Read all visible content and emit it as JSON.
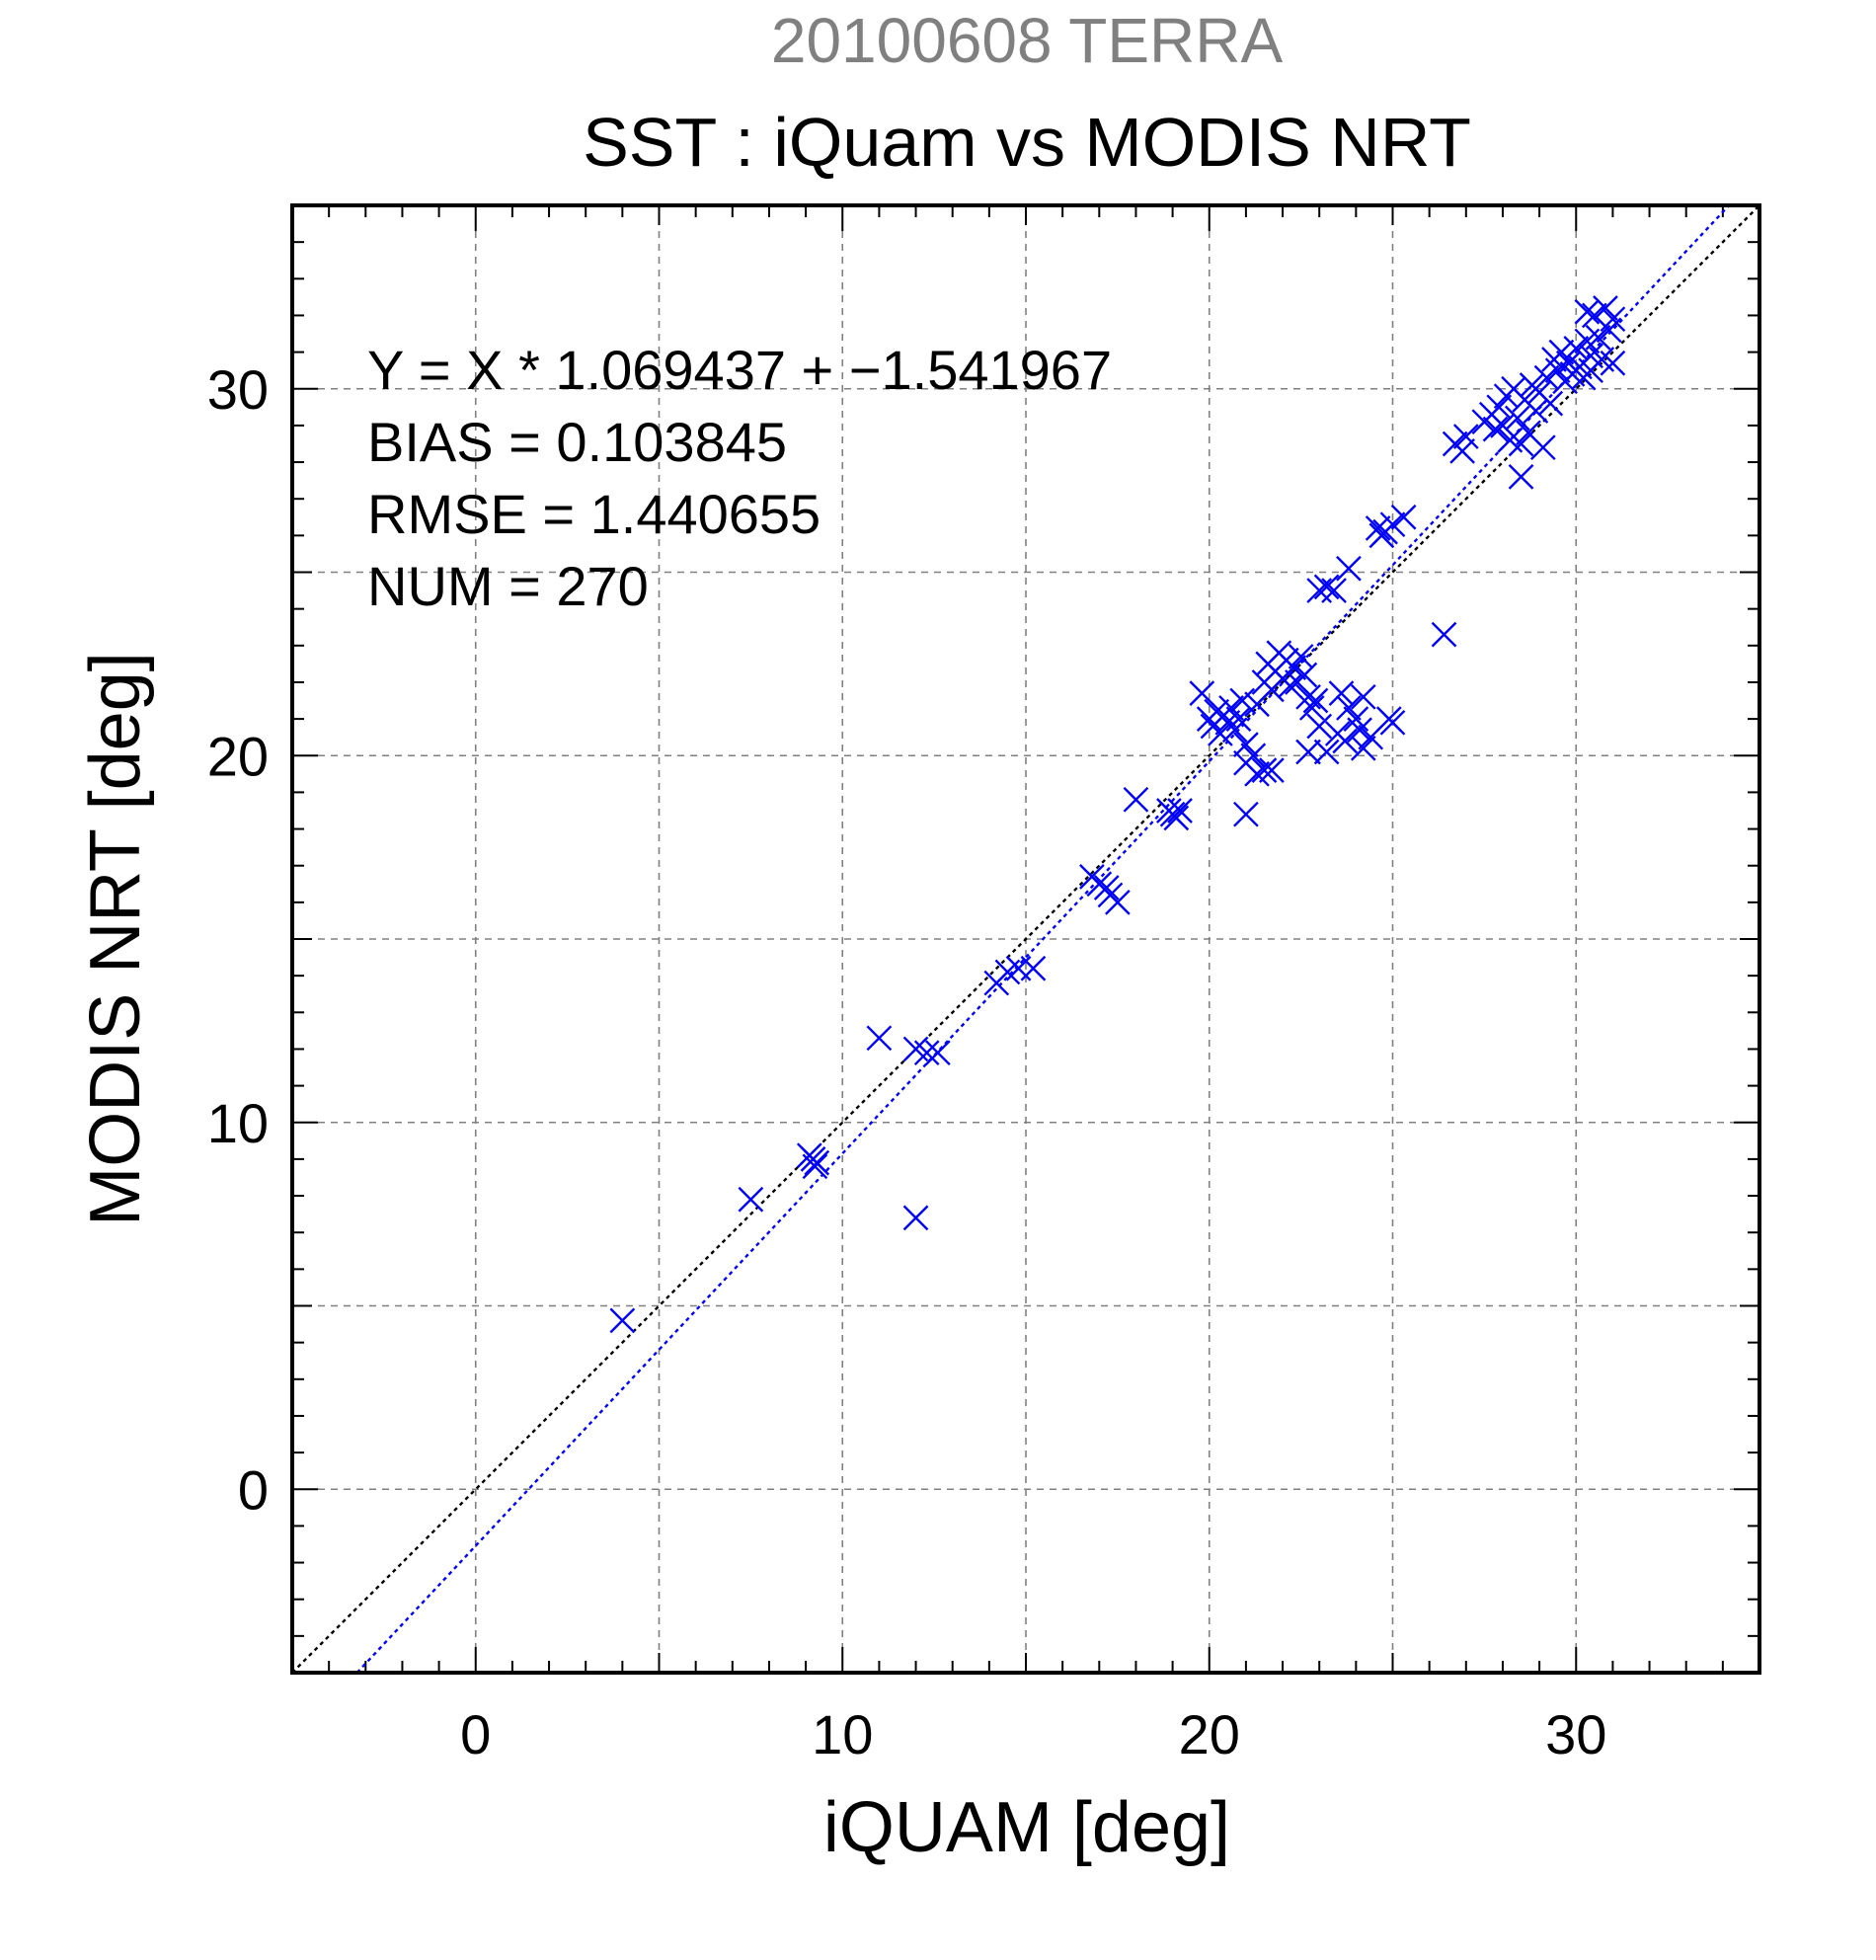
{
  "chart_data": {
    "type": "scatter",
    "supertitle": "20100608 TERRA",
    "title": "SST : iQuam vs MODIS NRT",
    "xlabel": "iQUAM [deg]",
    "ylabel": "MODIS NRT [deg]",
    "xlim": [
      -5,
      35
    ],
    "ylim": [
      -5,
      35
    ],
    "xticks": [
      0,
      10,
      20,
      30
    ],
    "yticks": [
      0,
      10,
      20,
      30
    ],
    "xtick_labels": [
      "0",
      "10",
      "20",
      "30"
    ],
    "ytick_labels": [
      "0",
      "10",
      "20",
      "30"
    ],
    "grid": true,
    "colors": {
      "points": "#0000ff",
      "fit_line": "#0000ff",
      "identity_line": "#000000",
      "grid": "#808080",
      "supertitle": "#808080"
    },
    "stats": {
      "equation": "Y = X * 1.069437 + −1.541967",
      "bias": "BIAS = 0.103845",
      "rmse": "RMSE = 1.440655",
      "num": "NUM = 270"
    },
    "fit": {
      "slope": 1.069437,
      "intercept": -1.541967
    },
    "identity": {
      "slope": 1,
      "intercept": 0
    },
    "points": [
      [
        4.0,
        4.6
      ],
      [
        7.5,
        7.9
      ],
      [
        9.1,
        9.1
      ],
      [
        9.2,
        9.0
      ],
      [
        9.3,
        8.9
      ],
      [
        9.25,
        8.8
      ],
      [
        11.0,
        12.3
      ],
      [
        12.0,
        12.0
      ],
      [
        12.3,
        11.9
      ],
      [
        12.6,
        11.9
      ],
      [
        12.0,
        7.4
      ],
      [
        14.2,
        13.8
      ],
      [
        14.5,
        14.1
      ],
      [
        14.8,
        14.2
      ],
      [
        15.2,
        14.2
      ],
      [
        16.8,
        16.7
      ],
      [
        17.0,
        16.5
      ],
      [
        17.2,
        16.4
      ],
      [
        17.3,
        16.2
      ],
      [
        17.5,
        16.0
      ],
      [
        18.0,
        18.8
      ],
      [
        18.9,
        18.5
      ],
      [
        19.0,
        18.4
      ],
      [
        19.2,
        18.5
      ],
      [
        19.1,
        18.3
      ],
      [
        19.8,
        21.7
      ],
      [
        20.0,
        21.0
      ],
      [
        20.1,
        20.8
      ],
      [
        20.2,
        21.2
      ],
      [
        20.3,
        20.6
      ],
      [
        20.4,
        21.1
      ],
      [
        20.5,
        20.9
      ],
      [
        20.6,
        21.3
      ],
      [
        20.7,
        20.7
      ],
      [
        20.8,
        21.0
      ],
      [
        20.9,
        21.5
      ],
      [
        21.0,
        20.3
      ],
      [
        21.0,
        18.4
      ],
      [
        21.0,
        19.8
      ],
      [
        21.2,
        20.0
      ],
      [
        21.3,
        19.5
      ],
      [
        21.5,
        19.6
      ],
      [
        21.7,
        19.6
      ],
      [
        21.3,
        21.4
      ],
      [
        21.5,
        22.0
      ],
      [
        21.6,
        22.5
      ],
      [
        21.7,
        21.8
      ],
      [
        21.8,
        22.3
      ],
      [
        21.9,
        22.8
      ],
      [
        22.0,
        22.1
      ],
      [
        22.1,
        22.6
      ],
      [
        22.2,
        21.9
      ],
      [
        22.3,
        22.4
      ],
      [
        22.4,
        22.0
      ],
      [
        22.5,
        22.7
      ],
      [
        22.6,
        22.2
      ],
      [
        22.7,
        21.6
      ],
      [
        22.8,
        21.3
      ],
      [
        22.9,
        21.5
      ],
      [
        23.0,
        20.8
      ],
      [
        22.7,
        20.1
      ],
      [
        23.2,
        20.1
      ],
      [
        23.5,
        20.6
      ],
      [
        23.7,
        20.4
      ],
      [
        23.8,
        21.3
      ],
      [
        24.0,
        21.0
      ],
      [
        24.1,
        20.7
      ],
      [
        24.2,
        20.2
      ],
      [
        24.4,
        20.5
      ],
      [
        24.2,
        21.6
      ],
      [
        23.6,
        21.7
      ],
      [
        24.9,
        21.0
      ],
      [
        25.0,
        20.9
      ],
      [
        23.0,
        24.5
      ],
      [
        23.2,
        24.6
      ],
      [
        23.4,
        24.5
      ],
      [
        23.8,
        25.1
      ],
      [
        24.6,
        26.2
      ],
      [
        24.8,
        26.1
      ],
      [
        25.0,
        26.3
      ],
      [
        25.3,
        26.5
      ],
      [
        24.7,
        26.0
      ],
      [
        26.4,
        23.3
      ],
      [
        26.7,
        28.5
      ],
      [
        26.9,
        28.3
      ],
      [
        27.0,
        28.7
      ],
      [
        27.5,
        29.1
      ],
      [
        27.7,
        29.3
      ],
      [
        27.8,
        28.9
      ],
      [
        27.9,
        29.5
      ],
      [
        28.0,
        29.0
      ],
      [
        28.1,
        29.8
      ],
      [
        28.2,
        28.6
      ],
      [
        28.3,
        30.0
      ],
      [
        28.4,
        29.2
      ],
      [
        28.5,
        28.5
      ],
      [
        28.6,
        29.7
      ],
      [
        28.7,
        28.8
      ],
      [
        28.8,
        30.1
      ],
      [
        28.9,
        29.4
      ],
      [
        29.0,
        29.9
      ],
      [
        29.1,
        28.4
      ],
      [
        28.5,
        27.6
      ],
      [
        29.2,
        30.3
      ],
      [
        29.3,
        29.6
      ],
      [
        29.4,
        30.8
      ],
      [
        29.5,
        30.5
      ],
      [
        29.6,
        31.0
      ],
      [
        29.7,
        30.2
      ],
      [
        29.8,
        30.7
      ],
      [
        29.9,
        30.4
      ],
      [
        30.0,
        31.1
      ],
      [
        30.1,
        30.6
      ],
      [
        30.2,
        30.3
      ],
      [
        30.3,
        31.3
      ],
      [
        30.4,
        30.9
      ],
      [
        30.5,
        32.0
      ],
      [
        30.6,
        31.4
      ],
      [
        30.7,
        30.8
      ],
      [
        30.8,
        32.2
      ],
      [
        30.9,
        31.6
      ],
      [
        31.0,
        31.9
      ],
      [
        31.0,
        30.7
      ],
      [
        30.4,
        30.5
      ],
      [
        30.3,
        32.1
      ]
    ]
  }
}
